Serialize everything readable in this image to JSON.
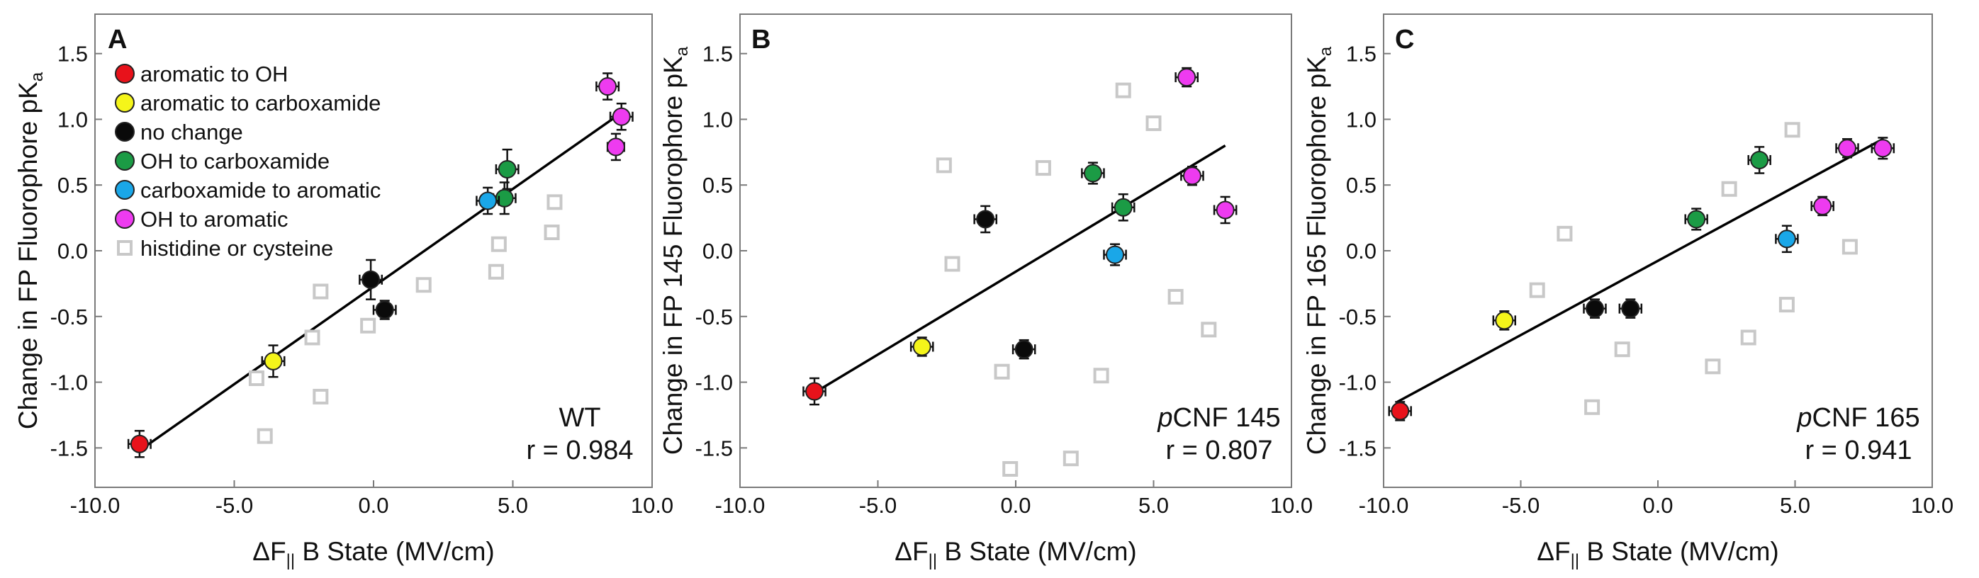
{
  "panel_A": {
    "letter": "A",
    "xlabel_main": "ΔF",
    "xlabel_sub": "||",
    "xlabel_rest": " B State (MV/cm)",
    "ylabel_main": "Change in FP Fluorophore pK",
    "ylabel_sub": "a",
    "annotation_line1": "WT",
    "annotation_line2": "r = 0.984"
  },
  "panel_B": {
    "letter": "B",
    "xlabel_main": "ΔF",
    "xlabel_sub": "||",
    "xlabel_rest": " B State (MV/cm)",
    "ylabel_main": "Change in FP 145 Fluorophore pK",
    "ylabel_sub": "a",
    "annotation_italic": "p",
    "annotation_line1": "CNF 145",
    "annotation_line2": "r = 0.807"
  },
  "panel_C": {
    "letter": "C",
    "xlabel_main": "ΔF",
    "xlabel_sub": "||",
    "xlabel_rest": " B State (MV/cm)",
    "ylabel_main": "Change in FP 165 Fluorophore pK",
    "ylabel_sub": "a",
    "annotation_italic": "p",
    "annotation_line1": "CNF 165",
    "annotation_line2": "r = 0.941"
  },
  "legend": [
    {
      "label": "aromatic to OH",
      "color": "#e8121b",
      "marker": "circle"
    },
    {
      "label": "aromatic to carboxamide",
      "color": "#f5f51a",
      "marker": "circle"
    },
    {
      "label": "no change",
      "color": "#0a0a0a",
      "marker": "circle"
    },
    {
      "label": "OH to carboxamide",
      "color": "#1b9b45",
      "marker": "circle"
    },
    {
      "label": "carboxamide to aromatic",
      "color": "#1aa7e8",
      "marker": "circle"
    },
    {
      "label": "OH to aromatic",
      "color": "#ee3bf0",
      "marker": "circle"
    },
    {
      "label": "histidine or cysteine",
      "color": "#c8c8c8",
      "marker": "square"
    }
  ],
  "chart_data": [
    {
      "type": "scatter",
      "panel": "A",
      "xlim": [
        -10,
        10
      ],
      "ylim": [
        -1.8,
        1.8
      ],
      "x_ticks": [
        "-10.0",
        "-5.0",
        "0.0",
        "5.0",
        "10.0"
      ],
      "y_ticks": [
        "-1.5",
        "-1.0",
        "-0.5",
        "0.0",
        "0.5",
        "1.0",
        "1.5"
      ],
      "fit_line": {
        "x": [
          -8.4,
          8.9
        ],
        "y": [
          -1.52,
          1.05
        ]
      },
      "series": [
        {
          "name": "aromatic to OH",
          "color": "#e8121b",
          "marker": "circle",
          "points": [
            {
              "x": -8.4,
              "y": -1.47,
              "xerr": 0.4,
              "yerr": 0.1
            }
          ]
        },
        {
          "name": "aromatic to carboxamide",
          "color": "#f5f51a",
          "marker": "circle",
          "points": [
            {
              "x": -3.6,
              "y": -0.84,
              "xerr": 0.4,
              "yerr": 0.12
            }
          ]
        },
        {
          "name": "no change",
          "color": "#0a0a0a",
          "marker": "circle",
          "points": [
            {
              "x": -0.1,
              "y": -0.22,
              "xerr": 0.4,
              "yerr": 0.15
            },
            {
              "x": 0.4,
              "y": -0.45,
              "xerr": 0.4,
              "yerr": 0.07
            }
          ]
        },
        {
          "name": "OH to carboxamide",
          "color": "#1b9b45",
          "marker": "circle",
          "points": [
            {
              "x": 4.8,
              "y": 0.62,
              "xerr": 0.4,
              "yerr": 0.15
            },
            {
              "x": 4.7,
              "y": 0.4,
              "xerr": 0.4,
              "yerr": 0.12
            }
          ]
        },
        {
          "name": "carboxamide to aromatic",
          "color": "#1aa7e8",
          "marker": "circle",
          "points": [
            {
              "x": 4.1,
              "y": 0.38,
              "xerr": 0.4,
              "yerr": 0.1
            }
          ]
        },
        {
          "name": "OH to aromatic",
          "color": "#ee3bf0",
          "marker": "circle",
          "points": [
            {
              "x": 8.4,
              "y": 1.25,
              "xerr": 0.4,
              "yerr": 0.1
            },
            {
              "x": 8.9,
              "y": 1.02,
              "xerr": 0.4,
              "yerr": 0.1
            },
            {
              "x": 8.7,
              "y": 0.79,
              "xerr": 0.3,
              "yerr": 0.1
            }
          ]
        },
        {
          "name": "histidine or cysteine",
          "color": "#c8c8c8",
          "marker": "square",
          "points": [
            {
              "x": -4.2,
              "y": -0.97
            },
            {
              "x": -3.9,
              "y": -1.41
            },
            {
              "x": -2.2,
              "y": -0.66
            },
            {
              "x": -1.9,
              "y": -0.31
            },
            {
              "x": -1.9,
              "y": -1.11
            },
            {
              "x": -0.2,
              "y": -0.57
            },
            {
              "x": 1.8,
              "y": -0.26
            },
            {
              "x": 4.4,
              "y": -0.16
            },
            {
              "x": 4.5,
              "y": 0.05
            },
            {
              "x": 6.4,
              "y": 0.14
            },
            {
              "x": 6.5,
              "y": 0.37
            }
          ]
        }
      ]
    },
    {
      "type": "scatter",
      "panel": "B",
      "xlim": [
        -10,
        10
      ],
      "ylim": [
        -1.8,
        1.8
      ],
      "x_ticks": [
        "-10.0",
        "-5.0",
        "0.0",
        "5.0",
        "10.0"
      ],
      "y_ticks": [
        "-1.5",
        "-1.0",
        "-0.5",
        "0.0",
        "0.5",
        "1.0",
        "1.5"
      ],
      "fit_line": {
        "x": [
          -7.3,
          7.6
        ],
        "y": [
          -1.08,
          0.8
        ]
      },
      "series": [
        {
          "name": "aromatic to OH",
          "color": "#e8121b",
          "marker": "circle",
          "points": [
            {
              "x": -7.3,
              "y": -1.07,
              "xerr": 0.4,
              "yerr": 0.1
            }
          ]
        },
        {
          "name": "aromatic to carboxamide",
          "color": "#f5f51a",
          "marker": "circle",
          "points": [
            {
              "x": -3.4,
              "y": -0.73,
              "xerr": 0.4,
              "yerr": 0.07
            }
          ]
        },
        {
          "name": "no change",
          "color": "#0a0a0a",
          "marker": "circle",
          "points": [
            {
              "x": -1.1,
              "y": 0.24,
              "xerr": 0.4,
              "yerr": 0.1
            },
            {
              "x": 0.3,
              "y": -0.75,
              "xerr": 0.4,
              "yerr": 0.07
            }
          ]
        },
        {
          "name": "OH to carboxamide",
          "color": "#1b9b45",
          "marker": "circle",
          "points": [
            {
              "x": 2.8,
              "y": 0.59,
              "xerr": 0.4,
              "yerr": 0.08
            },
            {
              "x": 3.9,
              "y": 0.33,
              "xerr": 0.4,
              "yerr": 0.1
            }
          ]
        },
        {
          "name": "carboxamide to aromatic",
          "color": "#1aa7e8",
          "marker": "circle",
          "points": [
            {
              "x": 3.6,
              "y": -0.03,
              "xerr": 0.4,
              "yerr": 0.08
            }
          ]
        },
        {
          "name": "OH to aromatic",
          "color": "#ee3bf0",
          "marker": "circle",
          "points": [
            {
              "x": 6.2,
              "y": 1.32,
              "xerr": 0.4,
              "yerr": 0.07
            },
            {
              "x": 6.4,
              "y": 0.57,
              "xerr": 0.4,
              "yerr": 0.07
            },
            {
              "x": 7.6,
              "y": 0.31,
              "xerr": 0.4,
              "yerr": 0.1
            }
          ]
        },
        {
          "name": "histidine or cysteine",
          "color": "#c8c8c8",
          "marker": "square",
          "points": [
            {
              "x": -2.6,
              "y": 0.65
            },
            {
              "x": -2.3,
              "y": -0.1
            },
            {
              "x": -0.5,
              "y": -0.92
            },
            {
              "x": 1.0,
              "y": 0.63
            },
            {
              "x": 3.1,
              "y": -0.95
            },
            {
              "x": 3.9,
              "y": 1.22
            },
            {
              "x": 5.0,
              "y": 0.97
            },
            {
              "x": 5.8,
              "y": -0.35
            },
            {
              "x": 7.0,
              "y": -0.6
            },
            {
              "x": -0.2,
              "y": -1.66
            },
            {
              "x": 2.0,
              "y": -1.58
            }
          ]
        }
      ]
    },
    {
      "type": "scatter",
      "panel": "C",
      "xlim": [
        -10,
        10
      ],
      "ylim": [
        -1.8,
        1.8
      ],
      "x_ticks": [
        "-10.0",
        "-5.0",
        "0.0",
        "5.0",
        "10.0"
      ],
      "y_ticks": [
        "-1.5",
        "-1.0",
        "-0.5",
        "0.0",
        "0.5",
        "1.0",
        "1.5"
      ],
      "fit_line": {
        "x": [
          -9.5,
          8.2
        ],
        "y": [
          -1.15,
          0.85
        ]
      },
      "series": [
        {
          "name": "aromatic to OH",
          "color": "#e8121b",
          "marker": "circle",
          "points": [
            {
              "x": -9.4,
              "y": -1.22,
              "xerr": 0.4,
              "yerr": 0.07
            }
          ]
        },
        {
          "name": "aromatic to carboxamide",
          "color": "#f5f51a",
          "marker": "circle",
          "points": [
            {
              "x": -5.6,
              "y": -0.53,
              "xerr": 0.4,
              "yerr": 0.07
            }
          ]
        },
        {
          "name": "no change",
          "color": "#0a0a0a",
          "marker": "circle",
          "points": [
            {
              "x": -2.3,
              "y": -0.44,
              "xerr": 0.4,
              "yerr": 0.07
            },
            {
              "x": -1.0,
              "y": -0.44,
              "xerr": 0.4,
              "yerr": 0.07
            }
          ]
        },
        {
          "name": "OH to carboxamide",
          "color": "#1b9b45",
          "marker": "circle",
          "points": [
            {
              "x": 1.4,
              "y": 0.24,
              "xerr": 0.4,
              "yerr": 0.08
            },
            {
              "x": 3.7,
              "y": 0.69,
              "xerr": 0.4,
              "yerr": 0.1
            }
          ]
        },
        {
          "name": "carboxamide to aromatic",
          "color": "#1aa7e8",
          "marker": "circle",
          "points": [
            {
              "x": 4.7,
              "y": 0.09,
              "xerr": 0.4,
              "yerr": 0.1
            }
          ]
        },
        {
          "name": "OH to aromatic",
          "color": "#ee3bf0",
          "marker": "circle",
          "points": [
            {
              "x": 6.9,
              "y": 0.78,
              "xerr": 0.4,
              "yerr": 0.07
            },
            {
              "x": 8.2,
              "y": 0.78,
              "xerr": 0.4,
              "yerr": 0.08
            },
            {
              "x": 6.0,
              "y": 0.34,
              "xerr": 0.4,
              "yerr": 0.07
            }
          ]
        },
        {
          "name": "histidine or cysteine",
          "color": "#c8c8c8",
          "marker": "square",
          "points": [
            {
              "x": -4.4,
              "y": -0.3
            },
            {
              "x": -3.4,
              "y": 0.13
            },
            {
              "x": -2.4,
              "y": -1.19
            },
            {
              "x": -1.3,
              "y": -0.75
            },
            {
              "x": 2.0,
              "y": -0.88
            },
            {
              "x": 2.6,
              "y": 0.47
            },
            {
              "x": 3.3,
              "y": -0.66
            },
            {
              "x": 4.7,
              "y": -0.41
            },
            {
              "x": 4.9,
              "y": 0.92
            },
            {
              "x": 7.0,
              "y": 0.03
            }
          ]
        }
      ]
    }
  ]
}
